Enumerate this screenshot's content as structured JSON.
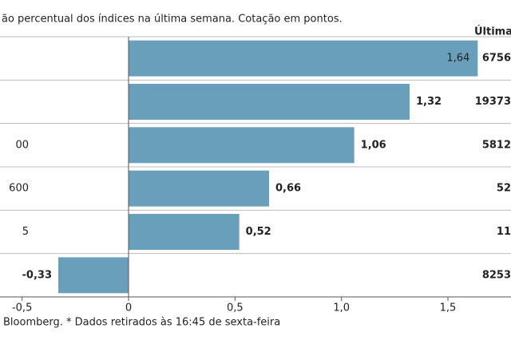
{
  "chart_data": {
    "type": "bar",
    "orientation": "horizontal",
    "subtitle": "ão percentual dos índices na última semana. Cotação em pontos.",
    "column_header": "Última c",
    "categories": [
      null,
      null,
      "00",
      "600",
      "5",
      null
    ],
    "values": [
      1.64,
      1.32,
      1.06,
      0.66,
      0.52,
      -0.33
    ],
    "value_labels": [
      "1,64",
      "1,32",
      "1,06",
      "0,66",
      "0,52",
      "-0,33"
    ],
    "last_values": [
      "6756",
      "19373",
      "5812",
      "52",
      "11",
      "8253"
    ],
    "color": "#6a9fbb",
    "xlim": [
      -0.6,
      1.8
    ],
    "xticks": [
      {
        "value": -0.5,
        "label": "-0,5"
      },
      0,
      {
        "value": 0.5,
        "label": "0,5"
      },
      {
        "value": 1.0,
        "label": "1,0"
      },
      {
        "value": 1.5,
        "label": "1,5"
      }
    ],
    "source": "Bloomberg.  * Dados retirados às 16:45 de sexta-feira"
  }
}
